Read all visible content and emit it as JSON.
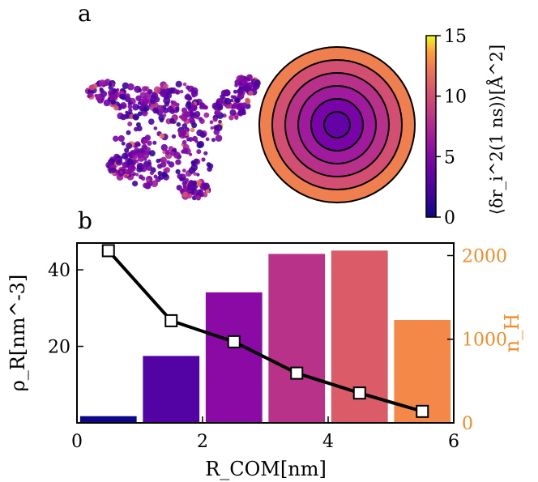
{
  "panel_a": {
    "label": "a",
    "colorbar": {
      "label": "⟨δr_i^2(1 ns)⟩[Å^2]",
      "range": [
        0,
        15
      ],
      "ticks": [
        "0",
        "5",
        "10",
        "15"
      ],
      "colormap": "plasma"
    },
    "ring_values": [
      3.5,
      4.5,
      6.5,
      8,
      10,
      12.5
    ]
  },
  "panel_b": {
    "label": "b"
  },
  "chart_data": {
    "type": "bar",
    "xlabel": "R_COM[nm]",
    "ylabel_left": "ρ_R[nm^-3]",
    "ylabel_right": "n_H",
    "right_axis_color": "#f28c28",
    "xlim": [
      0,
      6
    ],
    "ylim_left": [
      0,
      47
    ],
    "ylim_right": [
      0,
      2150
    ],
    "x_ticks": [
      "0",
      "2",
      "4",
      "6"
    ],
    "y_ticks_left": [
      "20",
      "40"
    ],
    "y_ticks_right": [
      "0",
      "1000",
      "2000"
    ],
    "bars": {
      "axis": "right",
      "x_centers": [
        0.5,
        1.5,
        2.5,
        3.5,
        4.5,
        5.5
      ],
      "width": 0.9,
      "values": [
        80,
        800,
        1560,
        2020,
        2060,
        1230
      ],
      "colors": [
        "#0d0887",
        "#5302a3",
        "#8b0aa5",
        "#b83289",
        "#db5c68",
        "#f48849"
      ]
    },
    "line": {
      "axis": "left",
      "x": [
        0.5,
        1.5,
        2.5,
        3.5,
        4.5,
        5.5
      ],
      "y": [
        45,
        26.7,
        21.2,
        13,
        7.8,
        3
      ],
      "color": "#000000",
      "marker": "square"
    }
  }
}
